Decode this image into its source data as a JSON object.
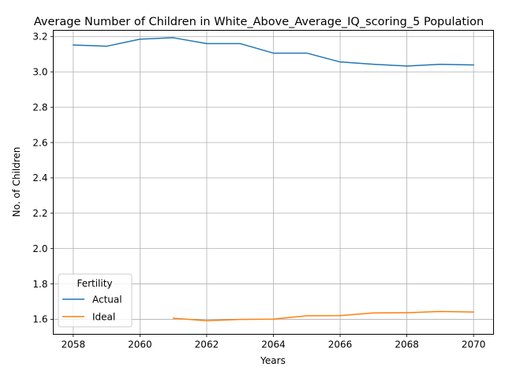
{
  "chart_data": {
    "type": "line",
    "title": "Average Number of Children in White_Above_Average_IQ_scoring_5 Population",
    "xlabel": "Years",
    "ylabel": "No. of Children",
    "xlim": [
      2057.4,
      2070.6
    ],
    "ylim": [
      1.515,
      3.235
    ],
    "x_ticks": [
      2058,
      2060,
      2062,
      2064,
      2066,
      2068,
      2070
    ],
    "y_ticks": [
      1.6,
      1.8,
      2.0,
      2.2,
      2.4,
      2.6,
      2.8,
      3.0,
      3.2
    ],
    "grid": true,
    "legend": {
      "title": "Fertility",
      "placement": "lower-left"
    },
    "series": [
      {
        "name": "Actual",
        "color": "#1f77b4",
        "x": [
          2058,
          2059,
          2060,
          2061,
          2062,
          2063,
          2064,
          2065,
          2066,
          2067,
          2068,
          2069,
          2070
        ],
        "y": [
          3.152,
          3.145,
          3.185,
          3.193,
          3.16,
          3.16,
          3.106,
          3.106,
          3.056,
          3.043,
          3.033,
          3.043,
          3.039
        ]
      },
      {
        "name": "Ideal",
        "color": "#ff7f0e",
        "x": [
          2061,
          2062,
          2063,
          2064,
          2065,
          2066,
          2067,
          2068,
          2069,
          2070
        ],
        "y": [
          1.606,
          1.592,
          1.599,
          1.601,
          1.62,
          1.621,
          1.636,
          1.637,
          1.644,
          1.641
        ]
      }
    ]
  }
}
